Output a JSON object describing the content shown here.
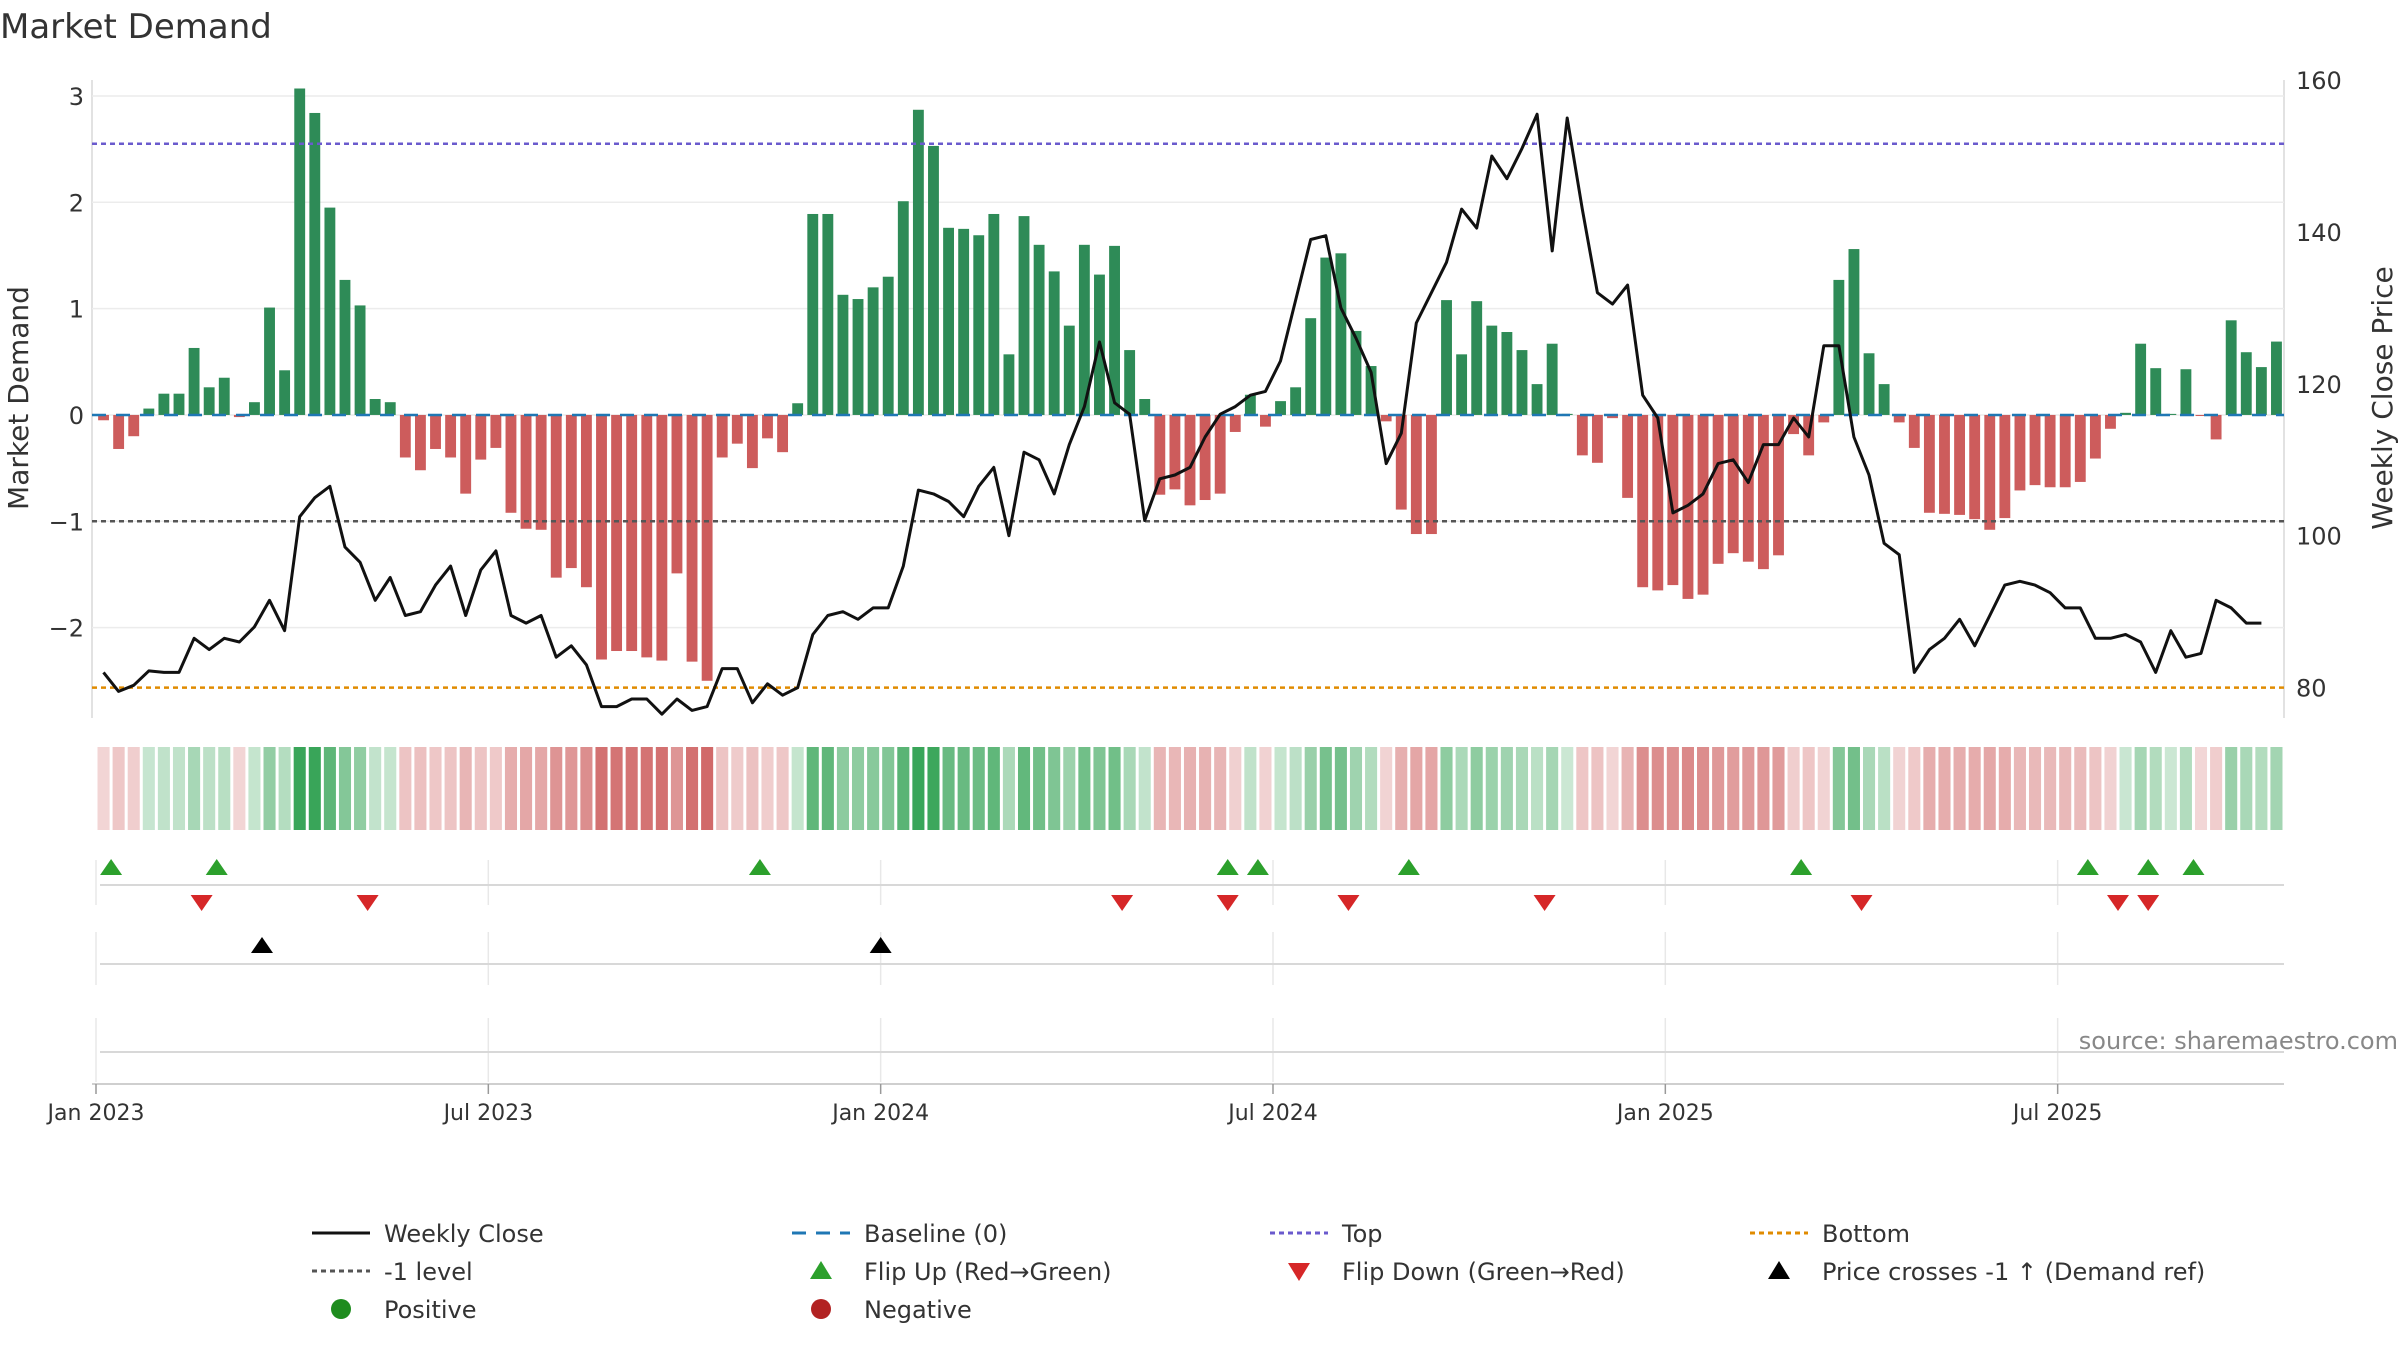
{
  "chart_data": {
    "type": "bar",
    "title": "Market Demand",
    "ylabel": "Market Demand",
    "y2label": "Weekly Close Price",
    "ylim": [
      -2.85,
      3.15
    ],
    "y2lim": [
      76,
      160
    ],
    "y_ticks": [
      {
        "v": 3,
        "label": "3"
      },
      {
        "v": 2,
        "label": "2"
      },
      {
        "v": 1,
        "label": "1"
      },
      {
        "v": 0,
        "label": "0"
      },
      {
        "v": -1,
        "label": "−1"
      },
      {
        "v": -2,
        "label": "−2"
      }
    ],
    "y2_ticks": [
      {
        "v": 160,
        "label": "160"
      },
      {
        "v": 140,
        "label": "140"
      },
      {
        "v": 120,
        "label": "120"
      },
      {
        "v": 100,
        "label": "100"
      },
      {
        "v": 80,
        "label": "80"
      }
    ],
    "x_ticks": [
      {
        "week": 1,
        "label": "Jan 2023"
      },
      {
        "week": 27,
        "label": "Jul 2023"
      },
      {
        "week": 53,
        "label": "Jan 2024"
      },
      {
        "week": 79,
        "label": "Jul 2024"
      },
      {
        "week": 105,
        "label": "Jan 2025"
      },
      {
        "week": 131,
        "label": "Jul 2025"
      }
    ],
    "demand": [
      -0.05,
      -0.32,
      -0.2,
      0.06,
      0.2,
      0.2,
      0.63,
      0.26,
      0.35,
      -0.02,
      0.12,
      1.01,
      0.42,
      3.07,
      2.84,
      1.95,
      1.27,
      1.03,
      0.15,
      0.12,
      -0.4,
      -0.52,
      -0.32,
      -0.4,
      -0.74,
      -0.42,
      -0.31,
      -0.92,
      -1.07,
      -1.08,
      -1.53,
      -1.44,
      -1.62,
      -2.3,
      -2.22,
      -2.22,
      -2.28,
      -2.31,
      -1.49,
      -2.32,
      -2.5,
      -0.4,
      -0.27,
      -0.5,
      -0.22,
      -0.35,
      0.11,
      1.89,
      1.89,
      1.13,
      1.09,
      1.2,
      1.3,
      2.01,
      2.87,
      2.53,
      1.76,
      1.75,
      1.69,
      1.89,
      0.57,
      1.87,
      1.6,
      1.35,
      0.84,
      1.6,
      1.32,
      1.59,
      0.61,
      0.15,
      -0.75,
      -0.7,
      -0.85,
      -0.8,
      -0.74,
      -0.16,
      0.19,
      -0.11,
      0.13,
      0.26,
      0.91,
      1.48,
      1.52,
      0.79,
      0.46,
      -0.06,
      -0.89,
      -1.12,
      -1.12,
      1.08,
      0.57,
      1.07,
      0.84,
      0.78,
      0.61,
      0.29,
      0.67,
      0.01,
      -0.38,
      -0.45,
      -0.03,
      -0.78,
      -1.62,
      -1.65,
      -1.6,
      -1.73,
      -1.69,
      -1.4,
      -1.3,
      -1.38,
      -1.45,
      -1.32,
      -0.18,
      -0.38,
      -0.07,
      1.27,
      1.56,
      0.58,
      0.29,
      -0.07,
      -0.31,
      -0.92,
      -0.93,
      -0.94,
      -0.98,
      -1.08,
      -0.97,
      -0.71,
      -0.66,
      -0.68,
      -0.68,
      -0.63,
      -0.41,
      -0.13,
      0.02,
      0.67,
      0.44,
      0.01,
      0.43,
      -0.01,
      -0.23,
      0.89,
      0.59,
      0.45,
      0.69
    ],
    "close": [
      82,
      79.5,
      80.3,
      82.2,
      82,
      82,
      86.5,
      85,
      86.5,
      86,
      88,
      91.5,
      87.5,
      102.5,
      105,
      106.5,
      98.5,
      96.5,
      91.5,
      94.5,
      89.5,
      90,
      93.5,
      96,
      89.5,
      95.5,
      98,
      89.5,
      88.5,
      89.5,
      84,
      85.5,
      83,
      77.5,
      77.5,
      78.5,
      78.5,
      76.5,
      78.5,
      77,
      77.5,
      82.5,
      82.5,
      78,
      80.5,
      79,
      80,
      87,
      89.5,
      90,
      89,
      90.5,
      90.5,
      96,
      106,
      105.5,
      104.5,
      102.5,
      106.5,
      109,
      100,
      111,
      110,
      105.5,
      112,
      117,
      125.5,
      117.5,
      116,
      102,
      107.5,
      108,
      109,
      113,
      116,
      117,
      118.5,
      119,
      123,
      131,
      139,
      139.5,
      130,
      126,
      121.5,
      109.5,
      113.5,
      128,
      132,
      136,
      143,
      140.5,
      150,
      147,
      151,
      155.5,
      137.5,
      155,
      143,
      132,
      130.5,
      133,
      118.5,
      115.5,
      103,
      104,
      105.5,
      109.5,
      110,
      107,
      112,
      112,
      115.5,
      113,
      125,
      125,
      113,
      108,
      99,
      97.5,
      82,
      85,
      86.5,
      89,
      85.5,
      89.5,
      93.5,
      94,
      93.5,
      92.5,
      90.5,
      90.5,
      86.5,
      86.5,
      87,
      86,
      82,
      87.5,
      84,
      84.5,
      91.5,
      90.5,
      88.5,
      88.5
    ],
    "lines": {
      "top": 2.55,
      "minus1": -1,
      "bottom_price": 80,
      "baseline": 0
    },
    "flip_up_weeks": [
      2,
      9,
      45,
      76,
      78,
      88,
      114,
      133,
      137,
      140
    ],
    "flip_down_weeks": [
      8,
      19,
      69,
      76,
      84,
      97,
      118,
      135,
      137
    ],
    "price_cross_weeks": [
      12,
      53
    ],
    "source": "source: sharemaestro.com",
    "legend": [
      {
        "key": "weekly_close",
        "label": "Weekly Close",
        "color": "#111111"
      },
      {
        "key": "baseline",
        "label": "Baseline (0)",
        "color": "#1f77b4"
      },
      {
        "key": "top",
        "label": "Top",
        "color": "#6a5acd"
      },
      {
        "key": "bottom",
        "label": "Bottom",
        "color": "#e08b00"
      },
      {
        "key": "minus1",
        "label": "-1 level",
        "color": "#555555"
      },
      {
        "key": "flip_up",
        "label": "Flip Up (Red→Green)",
        "color": "#2ca02c"
      },
      {
        "key": "flip_down",
        "label": "Flip Down (Green→Red)",
        "color": "#d62728"
      },
      {
        "key": "price_cross",
        "label": "Price crosses -1 ↑ (Demand ref)",
        "color": "#000000"
      },
      {
        "key": "positive",
        "label": "Positive",
        "color": "#1e8c1e"
      },
      {
        "key": "negative",
        "label": "Negative",
        "color": "#b22222"
      }
    ],
    "colors": {
      "positive_bar": "#2e8b57",
      "negative_bar": "#cd5c5c",
      "price_line": "#111111"
    }
  }
}
